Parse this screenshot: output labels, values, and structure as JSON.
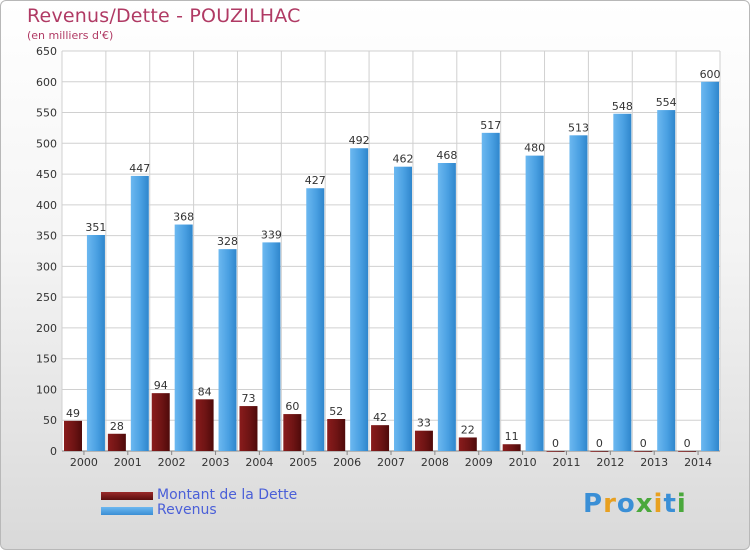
{
  "chart_data": {
    "type": "bar",
    "title": "Revenus/Dette - POUZILHAC",
    "subtitle": "(en milliers d'€)",
    "categories": [
      "2000",
      "2001",
      "2002",
      "2003",
      "2004",
      "2005",
      "2006",
      "2007",
      "2008",
      "2009",
      "2010",
      "2011",
      "2012",
      "2013",
      "2014"
    ],
    "series": [
      {
        "name": "Montant de la Dette",
        "color": "#7a1616",
        "values": [
          49,
          28,
          94,
          84,
          73,
          60,
          52,
          42,
          33,
          22,
          11,
          0,
          0,
          0,
          0
        ]
      },
      {
        "name": "Revenus",
        "color": "#4aa0e2",
        "values": [
          351,
          447,
          368,
          328,
          339,
          427,
          492,
          462,
          468,
          517,
          480,
          513,
          548,
          554,
          600
        ]
      }
    ],
    "ylim": [
      0,
      650
    ],
    "yticks": [
      0,
      50,
      100,
      150,
      200,
      250,
      300,
      350,
      400,
      450,
      500,
      550,
      600,
      650
    ],
    "grid": true,
    "legend_position": "bottom-left"
  },
  "logo": {
    "text": "Proxiti"
  }
}
